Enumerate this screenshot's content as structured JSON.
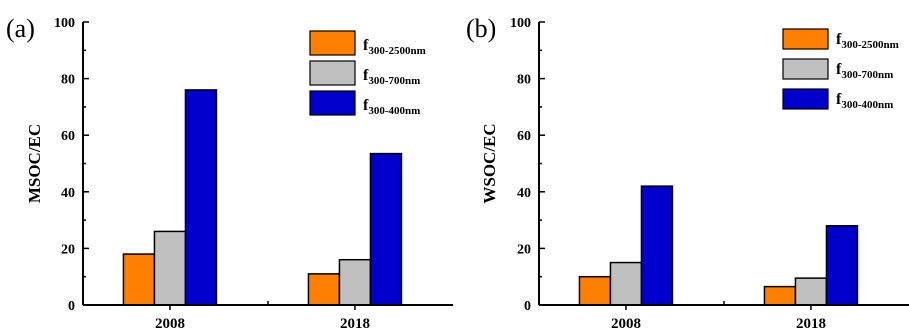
{
  "chart_data": [
    {
      "type": "bar",
      "panel_label": "(a)",
      "ylabel": "MSOC/EC",
      "ylim": [
        0,
        100
      ],
      "yticks": [
        0,
        20,
        40,
        60,
        80,
        100
      ],
      "categories": [
        "2008",
        "2018"
      ],
      "series": [
        {
          "name_main": "f",
          "name_sub": "300-2500nm",
          "color": "#FF8000",
          "values": [
            18,
            11
          ]
        },
        {
          "name_main": "f",
          "name_sub": "300-700nm",
          "color": "#C0C0C0",
          "values": [
            26,
            16
          ]
        },
        {
          "name_main": "f",
          "name_sub": "300-400nm",
          "color": "#0000CC",
          "values": [
            76,
            53.5
          ]
        }
      ],
      "legend_position": "top-right",
      "grid": false
    },
    {
      "type": "bar",
      "panel_label": "(b)",
      "ylabel": "WSOC/EC",
      "ylim": [
        0,
        100
      ],
      "yticks": [
        0,
        20,
        40,
        60,
        80,
        100
      ],
      "categories": [
        "2008",
        "2018"
      ],
      "series": [
        {
          "name_main": "f",
          "name_sub": "300-2500nm",
          "color": "#FF8000",
          "values": [
            10,
            6.5
          ]
        },
        {
          "name_main": "f",
          "name_sub": "300-700nm",
          "color": "#C0C0C0",
          "values": [
            15,
            9.5
          ]
        },
        {
          "name_main": "f",
          "name_sub": "300-400nm",
          "color": "#0000CC",
          "values": [
            42,
            28
          ]
        }
      ],
      "legend_position": "top-right",
      "grid": false
    }
  ]
}
